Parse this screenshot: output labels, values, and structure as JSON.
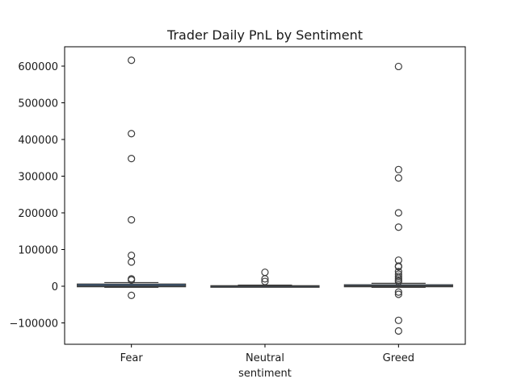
{
  "chart_data": {
    "type": "box",
    "title": "Trader Daily PnL by Sentiment",
    "xlabel": "sentiment",
    "ylabel": "",
    "categories": [
      "Fear",
      "Neutral",
      "Greed"
    ],
    "y_ticks": [
      -100000,
      0,
      100000,
      200000,
      300000,
      400000,
      500000,
      600000
    ],
    "ylim": [
      -160000,
      650000
    ],
    "grid": false,
    "colors": {
      "box_fill": "#3a6ea8",
      "box_edge": "#3d3d3d",
      "outlier": "#3d3d3d"
    },
    "boxes": [
      {
        "category": "Fear",
        "q1": -1500,
        "median": 1500,
        "q3": 6000,
        "whisker_low": -3000,
        "whisker_high": 10000,
        "outliers": [
          616000,
          416000,
          348000,
          181000,
          84000,
          66000,
          20000,
          17000,
          -25000
        ]
      },
      {
        "category": "Neutral",
        "q1": -1000,
        "median": 0,
        "q3": 1500,
        "whisker_low": -2000,
        "whisker_high": 3000,
        "outliers": [
          38000,
          20000,
          13000
        ]
      },
      {
        "category": "Greed",
        "q1": -1500,
        "median": 500,
        "q3": 4000,
        "whisker_low": -3000,
        "whisker_high": 8000,
        "outliers": [
          599000,
          318000,
          295000,
          200000,
          161000,
          71000,
          55000,
          53000,
          40000,
          33000,
          27000,
          22000,
          17000,
          13000,
          -16000,
          -22000,
          -93000,
          -122000
        ]
      }
    ]
  }
}
